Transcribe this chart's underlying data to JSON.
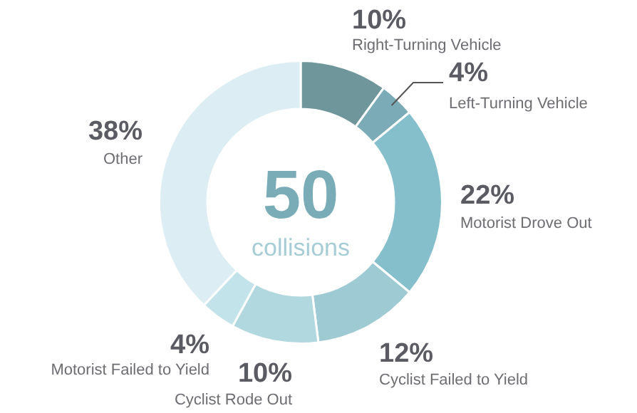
{
  "chart_data": {
    "type": "donut",
    "categories": [
      "Right-Turning Vehicle",
      "Left-Turning Vehicle",
      "Motorist Drove Out",
      "Cyclist Failed to Yield",
      "Cyclist Rode Out",
      "Motorist Failed to Yield",
      "Other"
    ],
    "values": [
      10,
      4,
      22,
      12,
      10,
      4,
      38
    ],
    "value_labels": [
      "10%",
      "4%",
      "22%",
      "12%",
      "10%",
      "4%",
      "38%"
    ],
    "colors": [
      "#6e969b",
      "#7aabb6",
      "#84bfcb",
      "#9dcad3",
      "#b2d8df",
      "#c2e3ea",
      "#dceef3"
    ],
    "annotations": [
      "50",
      "collisions"
    ],
    "legend": false
  }
}
